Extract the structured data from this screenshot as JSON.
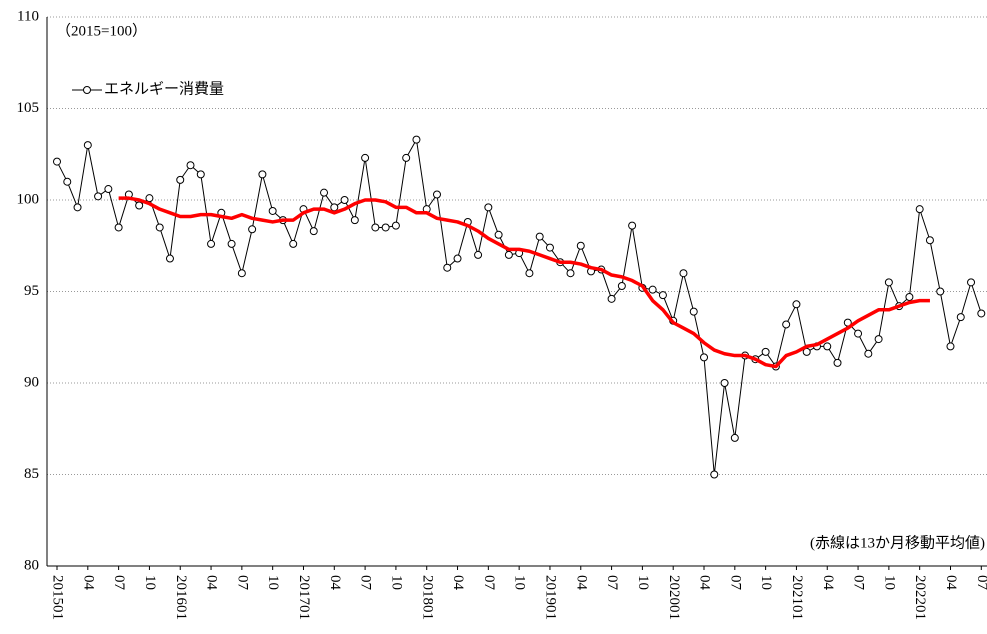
{
  "chart_data": {
    "type": "line",
    "annotations": [
      "（2015=100）",
      "(赤線は13か月移動平均値)"
    ],
    "categories": [
      "201501",
      null,
      null,
      "04",
      null,
      null,
      "07",
      null,
      null,
      "10",
      null,
      null,
      "201601",
      null,
      null,
      "04",
      null,
      null,
      "07",
      null,
      null,
      "10",
      null,
      null,
      "201701",
      null,
      null,
      "04",
      null,
      null,
      "07",
      null,
      null,
      "10",
      null,
      null,
      "201801",
      null,
      null,
      "04",
      null,
      null,
      "07",
      null,
      null,
      "10",
      null,
      null,
      "201901",
      null,
      null,
      "04",
      null,
      null,
      "07",
      null,
      null,
      "10",
      null,
      null,
      "202001",
      null,
      null,
      "04",
      null,
      null,
      "07",
      null,
      null,
      "10",
      null,
      null,
      "202101",
      null,
      null,
      "04",
      null,
      null,
      "07",
      null,
      null,
      "10",
      null,
      null,
      "202201",
      null,
      null,
      "04",
      null,
      null,
      "07"
    ],
    "series": [
      {
        "name": "エネルギー消費量",
        "color": "#000000",
        "marker": "circle",
        "values": [
          102.1,
          101.0,
          99.6,
          103.0,
          100.2,
          100.6,
          98.5,
          100.3,
          99.7,
          100.1,
          98.5,
          96.8,
          101.1,
          101.9,
          101.4,
          97.6,
          99.3,
          97.6,
          96.0,
          98.4,
          101.4,
          99.4,
          98.9,
          97.6,
          99.5,
          98.3,
          100.4,
          99.6,
          100.0,
          98.9,
          102.3,
          98.5,
          98.5,
          98.6,
          102.3,
          103.3,
          99.5,
          100.3,
          96.3,
          96.8,
          98.8,
          97.0,
          99.6,
          98.1,
          97.0,
          97.1,
          96.0,
          98.0,
          97.4,
          96.6,
          96.0,
          97.5,
          96.1,
          96.2,
          94.6,
          95.3,
          98.6,
          95.2,
          95.1,
          94.8,
          93.4,
          96.0,
          93.9,
          91.4,
          85.0,
          90.0,
          87.0,
          91.5,
          91.3,
          91.7,
          90.9,
          93.2,
          94.3,
          91.7,
          92.0,
          92.0,
          91.1,
          93.3,
          92.7,
          91.6,
          92.4,
          95.5,
          94.2,
          94.7,
          99.5,
          97.8,
          95.0,
          92.0,
          93.6,
          95.5,
          93.8
        ]
      },
      {
        "color": "#ff0000",
        "values": [
          null,
          null,
          null,
          null,
          null,
          null,
          100.1,
          100.1,
          100.0,
          99.8,
          99.5,
          99.3,
          99.1,
          99.1,
          99.2,
          99.2,
          99.1,
          99.0,
          99.2,
          99.0,
          98.9,
          98.8,
          98.9,
          98.9,
          99.3,
          99.5,
          99.5,
          99.3,
          99.5,
          99.8,
          100.0,
          100.0,
          99.9,
          99.6,
          99.6,
          99.3,
          99.3,
          99.0,
          98.9,
          98.8,
          98.6,
          98.3,
          97.9,
          97.6,
          97.3,
          97.3,
          97.2,
          97.0,
          96.8,
          96.6,
          96.6,
          96.5,
          96.3,
          96.2,
          95.9,
          95.8,
          95.6,
          95.3,
          94.5,
          94.0,
          93.3,
          93.0,
          92.7,
          92.2,
          91.8,
          91.6,
          91.5,
          91.5,
          91.3,
          91.0,
          90.9,
          91.5,
          91.7,
          92.0,
          92.1,
          92.4,
          92.7,
          93.0,
          93.4,
          93.7,
          94.0,
          94.0,
          94.2,
          94.4,
          94.5,
          94.5,
          null,
          null,
          null,
          null,
          null
        ]
      }
    ],
    "ylim": [
      80,
      110
    ],
    "yticks": [
      80,
      85,
      90,
      95,
      100,
      105,
      110
    ],
    "grid": true
  }
}
